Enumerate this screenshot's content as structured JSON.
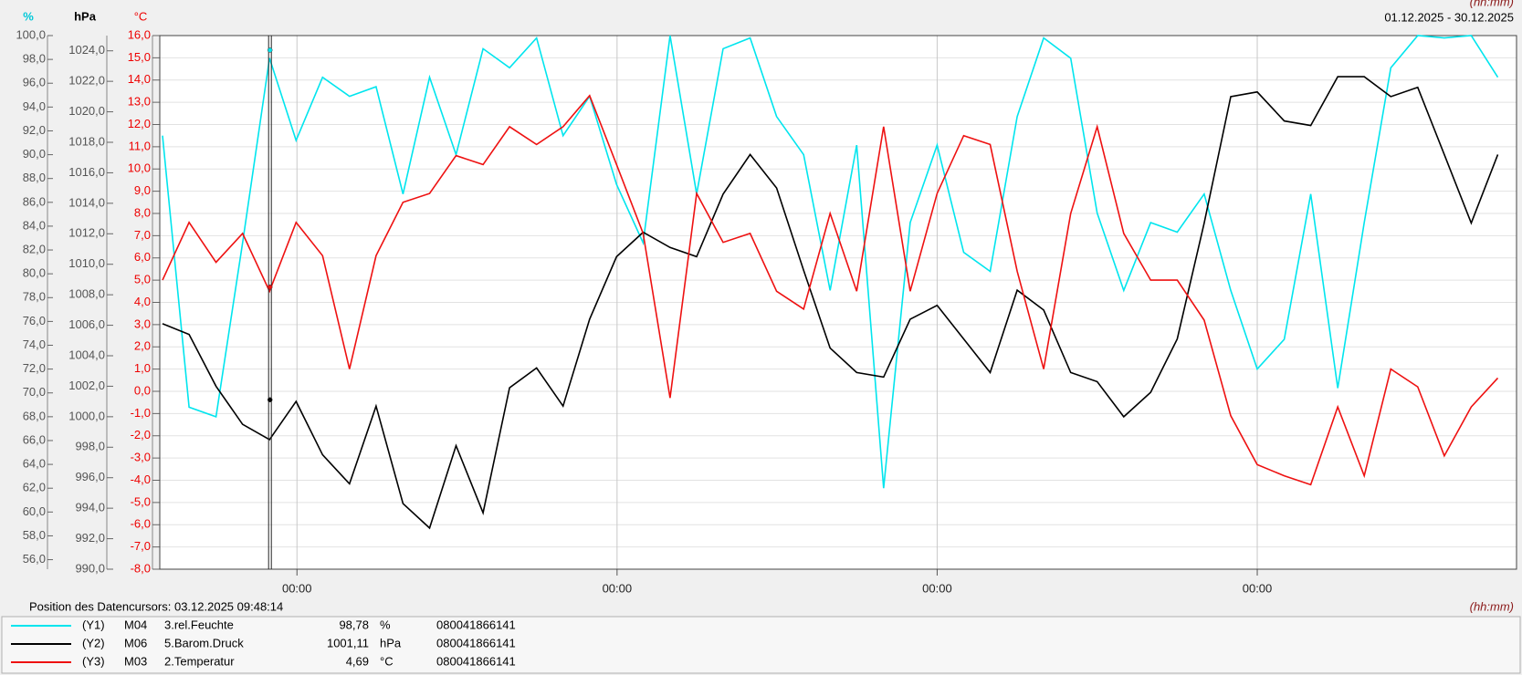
{
  "chart_data": {
    "type": "line",
    "date_range": "01.12.2025 - 30.12.2025",
    "x_label": "(hh:mm)",
    "cursor": {
      "x": 2.41,
      "label": "Position des Datencursors: 03.12.2025 09:48:14"
    },
    "xlim": [
      0,
      29.67
    ],
    "xticks": [
      {
        "value": 3,
        "label": "00:00"
      },
      {
        "value": 10,
        "label": "00:00"
      },
      {
        "value": 17,
        "label": "00:00"
      },
      {
        "value": 24,
        "label": "00:00"
      }
    ],
    "y_unit": "%",
    "y2_unit": "hPa",
    "y3_unit": "°C",
    "ylim": [
      55.2,
      100
    ],
    "yticks": [
      {
        "value": 56,
        "label": "56,0"
      },
      {
        "value": 58,
        "label": "58,0"
      },
      {
        "value": 60,
        "label": "60,0"
      },
      {
        "value": 62,
        "label": "62,0"
      },
      {
        "value": 64,
        "label": "64,0"
      },
      {
        "value": 66,
        "label": "66,0"
      },
      {
        "value": 68,
        "label": "68,0"
      },
      {
        "value": 70,
        "label": "70,0"
      },
      {
        "value": 72,
        "label": "72,0"
      },
      {
        "value": 74,
        "label": "74,0"
      },
      {
        "value": 76,
        "label": "76,0"
      },
      {
        "value": 78,
        "label": "78,0"
      },
      {
        "value": 80,
        "label": "80,0"
      },
      {
        "value": 82,
        "label": "82,0"
      },
      {
        "value": 84,
        "label": "84,0"
      },
      {
        "value": 86,
        "label": "86,0"
      },
      {
        "value": 88,
        "label": "88,0"
      },
      {
        "value": 90,
        "label": "90,0"
      },
      {
        "value": 92,
        "label": "92,0"
      },
      {
        "value": 94,
        "label": "94,0"
      },
      {
        "value": 96,
        "label": "96,0"
      },
      {
        "value": 98,
        "label": "98,0"
      },
      {
        "value": 100,
        "label": "100,0"
      }
    ],
    "y2lim": [
      990,
      1025
    ],
    "y2ticks": [
      {
        "value": 990,
        "label": "990,0"
      },
      {
        "value": 992,
        "label": "992,0"
      },
      {
        "value": 994,
        "label": "994,0"
      },
      {
        "value": 996,
        "label": "996,0"
      },
      {
        "value": 998,
        "label": "998,0"
      },
      {
        "value": 1000,
        "label": "1000,0"
      },
      {
        "value": 1002,
        "label": "1002,0"
      },
      {
        "value": 1004,
        "label": "1004,0"
      },
      {
        "value": 1006,
        "label": "1006,0"
      },
      {
        "value": 1008,
        "label": "1008,0"
      },
      {
        "value": 1010,
        "label": "1010,0"
      },
      {
        "value": 1012,
        "label": "1012,0"
      },
      {
        "value": 1014,
        "label": "1014,0"
      },
      {
        "value": 1016,
        "label": "1016,0"
      },
      {
        "value": 1018,
        "label": "1018,0"
      },
      {
        "value": 1020,
        "label": "1020,0"
      },
      {
        "value": 1022,
        "label": "1022,0"
      },
      {
        "value": 1024,
        "label": "1024,0"
      }
    ],
    "y3lim": [
      -8,
      16
    ],
    "y3ticks": [
      {
        "value": -8,
        "label": "-8,0"
      },
      {
        "value": -7,
        "label": "-7,0"
      },
      {
        "value": -6,
        "label": "-6,0"
      },
      {
        "value": -5,
        "label": "-5,0"
      },
      {
        "value": -4,
        "label": "-4,0"
      },
      {
        "value": -3,
        "label": "-3,0"
      },
      {
        "value": -2,
        "label": "-2,0"
      },
      {
        "value": -1,
        "label": "-1,0"
      },
      {
        "value": 0,
        "label": "0,0"
      },
      {
        "value": 1,
        "label": "1,0"
      },
      {
        "value": 2,
        "label": "2,0"
      },
      {
        "value": 3,
        "label": "3,0"
      },
      {
        "value": 4,
        "label": "4,0"
      },
      {
        "value": 5,
        "label": "5,0"
      },
      {
        "value": 6,
        "label": "6,0"
      },
      {
        "value": 7,
        "label": "7,0"
      },
      {
        "value": 8,
        "label": "8,0"
      },
      {
        "value": 9,
        "label": "9,0"
      },
      {
        "value": 10,
        "label": "10,0"
      },
      {
        "value": 11,
        "label": "11,0"
      },
      {
        "value": 12,
        "label": "12,0"
      },
      {
        "value": 13,
        "label": "13,0"
      },
      {
        "value": 14,
        "label": "14,0"
      },
      {
        "value": 15,
        "label": "15,0"
      },
      {
        "value": 16,
        "label": "16,0"
      }
    ],
    "grid": true,
    "x": [
      0.06,
      0.64,
      1.23,
      1.81,
      2.4,
      2.98,
      3.56,
      4.15,
      4.73,
      5.32,
      5.9,
      6.48,
      7.07,
      7.65,
      8.24,
      8.82,
      9.4,
      9.99,
      10.57,
      11.16,
      11.74,
      12.32,
      12.91,
      13.49,
      14.08,
      14.66,
      15.24,
      15.83,
      16.41,
      17.0,
      17.58,
      18.16,
      18.75,
      19.33,
      19.92,
      20.5,
      21.08,
      21.67,
      22.25,
      22.84,
      23.42,
      24.0,
      24.59,
      25.17,
      25.76,
      26.34,
      26.92,
      27.51,
      28.09,
      28.68,
      29.26
    ],
    "series": [
      {
        "id": "(Y1)",
        "channel": "M04",
        "name": "3.rel.Feuchte",
        "cursor_value": 98.78,
        "cursor_label": "98,78",
        "unit": "%",
        "serial": "080041866141",
        "color": "#00e5ee",
        "axis": "y",
        "values": [
          91.6,
          68.8,
          68,
          82.6,
          98.1,
          91.2,
          96.5,
          94.9,
          95.7,
          86.7,
          96.5,
          90,
          98.9,
          97.3,
          99.8,
          91.6,
          94.9,
          87.5,
          82.6,
          100,
          86.7,
          98.9,
          99.8,
          93.2,
          90,
          78.6,
          90.8,
          62,
          84.3,
          90.8,
          81.8,
          80.2,
          93.2,
          99.8,
          98.1,
          85.1,
          78.6,
          84.3,
          83.5,
          86.7,
          78.6,
          72,
          74.5,
          86.7,
          70.4,
          84.3,
          97.3,
          100,
          99.8,
          100,
          96.5
        ]
      },
      {
        "id": "(Y2)",
        "channel": "M06",
        "name": "5.Barom.Druck",
        "cursor_value": 1001.11,
        "cursor_label": "1001,11",
        "unit": "hPa",
        "serial": "080041866141",
        "color": "#000000",
        "axis": "y2",
        "values": [
          1006.1,
          1005.4,
          1002,
          999.5,
          998.5,
          1001,
          997.5,
          995.6,
          1000.7,
          994.3,
          992.7,
          998.1,
          993.7,
          1001.9,
          1003.2,
          1000.7,
          1006.4,
          1010.5,
          1012.1,
          1011.1,
          1010.5,
          1014.6,
          1017.2,
          1015,
          1009.6,
          1004.5,
          1002.9,
          1002.6,
          1006.4,
          1007.3,
          1005.1,
          1002.9,
          1008.3,
          1007,
          1002.9,
          1002.3,
          1000,
          1001.6,
          1005.1,
          1012.7,
          1021,
          1021.3,
          1019.4,
          1019.1,
          1022.3,
          1022.3,
          1021,
          1021.6,
          1017.2,
          1012.7,
          1017.2
        ]
      },
      {
        "id": "(Y3)",
        "channel": "M03",
        "name": "2.Temperatur",
        "cursor_value": 4.69,
        "cursor_label": "4,69",
        "unit": "°C",
        "serial": "080041866141",
        "color": "#ee1111",
        "axis": "y3",
        "values": [
          5,
          7.6,
          5.8,
          7.1,
          4.5,
          7.6,
          6.1,
          1.0,
          6.1,
          8.5,
          8.9,
          10.6,
          10.2,
          11.9,
          11.1,
          11.9,
          13.3,
          10.2,
          7.1,
          -0.3,
          8.9,
          6.7,
          7.1,
          4.5,
          3.7,
          8,
          4.5,
          11.9,
          4.5,
          8.9,
          11.5,
          11.1,
          5.4,
          1.0,
          8,
          11.9,
          7.1,
          5,
          5,
          3.2,
          -1.1,
          -3.3,
          -3.8,
          -4.2,
          -0.7,
          -3.8,
          1.0,
          0.2,
          -2.9,
          -0.7,
          0.6
        ]
      }
    ]
  }
}
